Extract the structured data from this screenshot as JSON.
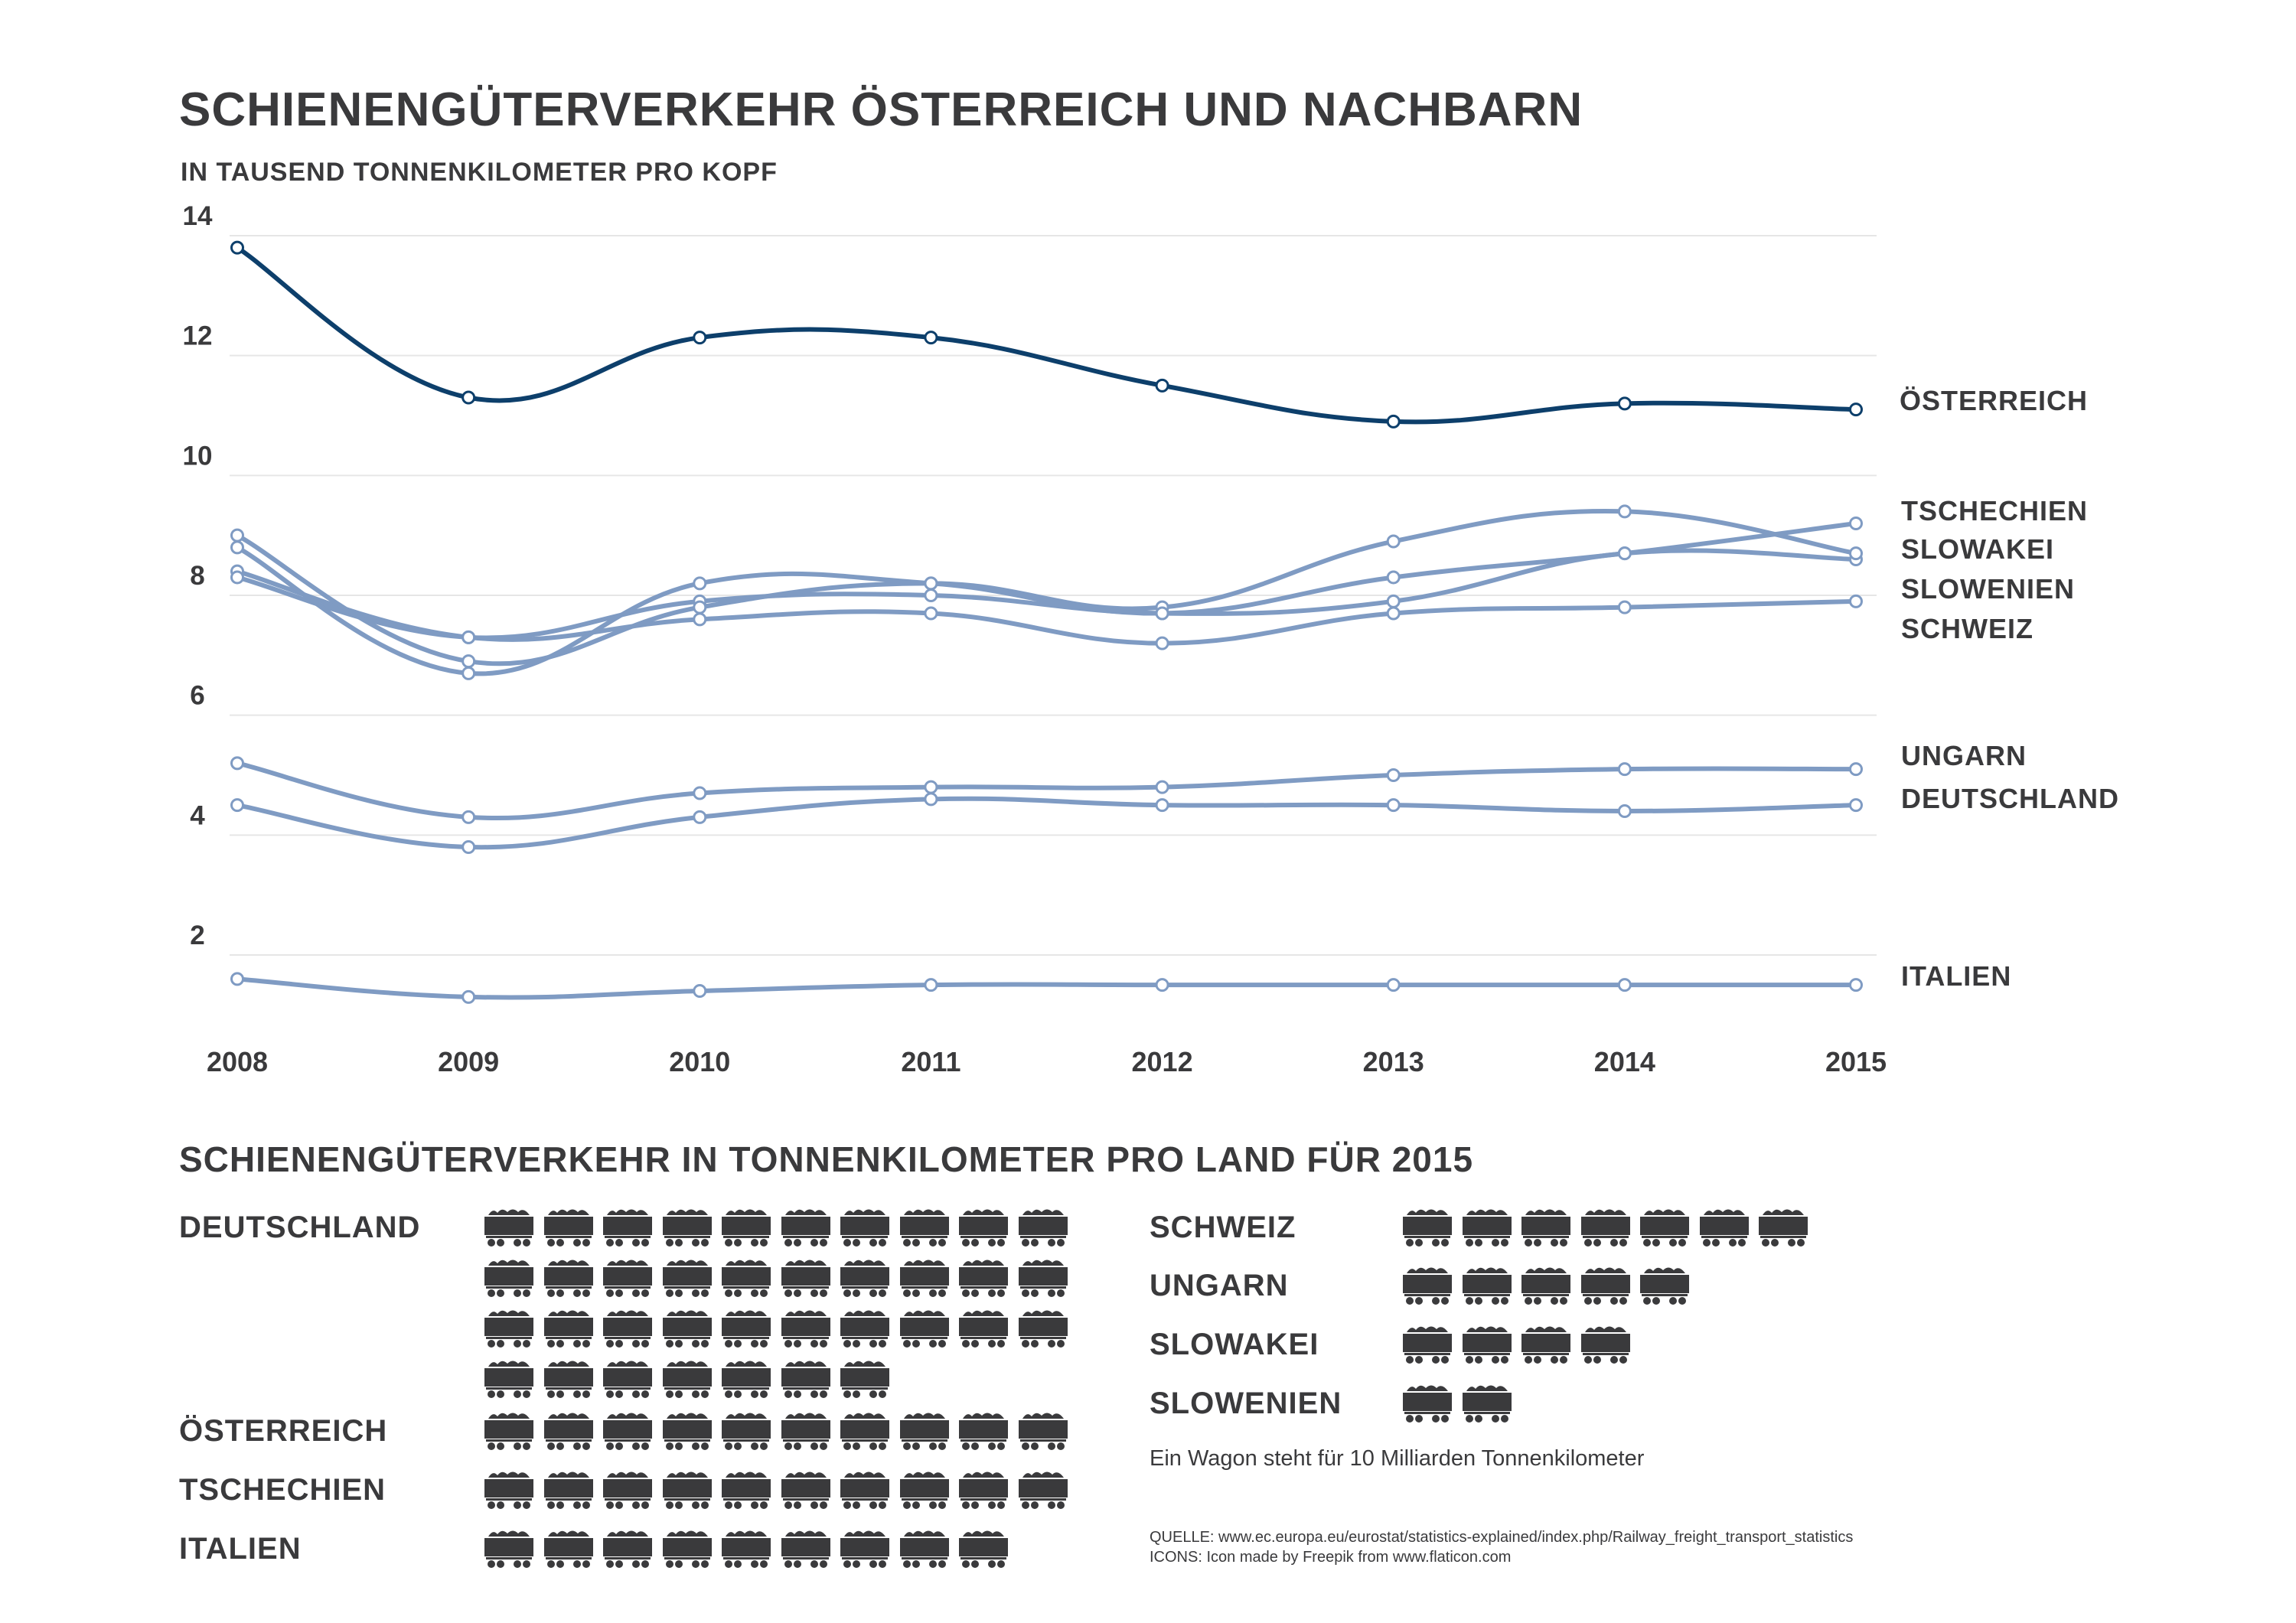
{
  "title": "SCHIENENGÜTERVERKEHR ÖSTERREICH UND NACHBARN",
  "subtitle": "IN TAUSEND TONNENKILOMETER PRO KOPF",
  "chart_data": {
    "type": "line",
    "title": "SCHIENENGÜTERVERKEHR ÖSTERREICH UND NACHBARN",
    "subtitle": "IN TAUSEND TONNENKILOMETER PRO KOPF",
    "x": [
      "2008",
      "2009",
      "2010",
      "2011",
      "2012",
      "2013",
      "2014",
      "2015"
    ],
    "y_ticks": [
      "2",
      "4",
      "6",
      "8",
      "10",
      "12",
      "14"
    ],
    "ylim": [
      0.8,
      14.2
    ],
    "grid": true,
    "series": [
      {
        "name": "ÖSTERREICH",
        "values": [
          13.8,
          11.3,
          12.3,
          12.3,
          11.5,
          10.9,
          11.2,
          11.1
        ]
      },
      {
        "name": "TSCHECHIEN",
        "values": [
          8.8,
          6.7,
          8.2,
          8.2,
          7.7,
          8.3,
          8.7,
          9.2
        ]
      },
      {
        "name": "SLOWAKEI",
        "values": [
          9.0,
          6.9,
          7.8,
          8.2,
          7.8,
          8.9,
          9.4,
          8.7
        ]
      },
      {
        "name": "SLOWENIEN",
        "values": [
          8.3,
          7.3,
          7.9,
          8.0,
          7.7,
          7.9,
          8.7,
          8.6
        ]
      },
      {
        "name": "SCHWEIZ",
        "values": [
          8.4,
          7.3,
          7.6,
          7.7,
          7.2,
          7.7,
          7.8,
          7.9
        ]
      },
      {
        "name": "UNGARN",
        "values": [
          5.2,
          4.3,
          4.7,
          4.8,
          4.8,
          5.0,
          5.1,
          5.1
        ]
      },
      {
        "name": "DEUTSCHLAND",
        "values": [
          4.5,
          3.8,
          4.3,
          4.6,
          4.5,
          4.5,
          4.4,
          4.5
        ]
      },
      {
        "name": "ITALIEN",
        "values": [
          1.6,
          1.3,
          1.4,
          1.5,
          1.5,
          1.5,
          1.5,
          1.5
        ]
      }
    ],
    "colors": {
      "highlight": "#0d3f6b",
      "others": "#7f9bc3",
      "grid": "#e6e6e6"
    }
  },
  "section2": {
    "title": "SCHIENENGÜTERVERKEHR IN TONNENKILOMETER PRO LAND FÜR 2015",
    "countries": [
      {
        "name": "DEUTSCHLAND",
        "wagons": 37
      },
      {
        "name": "ÖSTERREICH",
        "wagons": 10
      },
      {
        "name": "TSCHECHIEN",
        "wagons": 10
      },
      {
        "name": "ITALIEN",
        "wagons": 9
      },
      {
        "name": "SCHWEIZ",
        "wagons": 7
      },
      {
        "name": "UNGARN",
        "wagons": 5
      },
      {
        "name": "SLOWAKEI",
        "wagons": 4
      },
      {
        "name": "SLOWENIEN",
        "wagons": 2
      }
    ],
    "wagon_icon": "freight-wagon-icon",
    "wagon_color": "#3a3a3c",
    "legend": "Ein Wagon steht für 10 Milliarden Tonnenkilometer"
  },
  "footer": {
    "source": "QUELLE: www.ec.europa.eu/eurostat/statistics-explained/index.php/Railway_freight_transport_statistics",
    "icons": "ICONS:     Icon made by Freepik from www.flaticon.com"
  }
}
